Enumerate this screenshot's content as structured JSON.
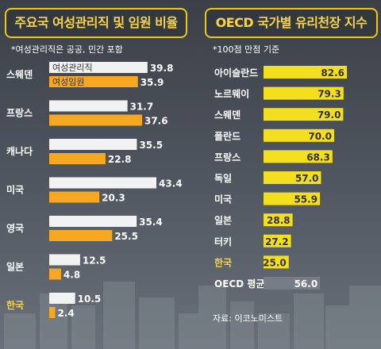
{
  "left": {
    "title": "주요국 여성관리직 및 임원 비율",
    "note": "*여성관리직은 공공, 민간 포함"
  },
  "right": {
    "title": "OECD 국가별 유리천장 지수",
    "note": "*100점 만점 기준",
    "source": "자료: 이코노미스트"
  },
  "colors": {
    "white_bar": "#f2f2f2",
    "orange_bar": "#f7a823",
    "yellow_bar": "#f3de20",
    "highlight_text": "#f5d34a",
    "text": "#ffffff"
  },
  "chart_data": [
    {
      "type": "bar",
      "orientation": "horizontal",
      "title": "주요국 여성관리직 및 임원 비율",
      "categories": [
        "스웨덴",
        "프랑스",
        "캐나다",
        "미국",
        "영국",
        "일본",
        "한국"
      ],
      "highlight_category": "한국",
      "series": [
        {
          "name": "여성관리직",
          "color": "#f2f2f2",
          "values": [
            39.8,
            31.7,
            35.5,
            43.4,
            35.4,
            12.5,
            10.5
          ]
        },
        {
          "name": "여성임원",
          "color": "#f7a823",
          "values": [
            35.9,
            37.6,
            22.8,
            20.3,
            25.5,
            4.8,
            2.4
          ]
        }
      ],
      "xlim": [
        0,
        45
      ]
    },
    {
      "type": "bar",
      "orientation": "horizontal",
      "title": "OECD 국가별 유리천장 지수",
      "categories": [
        "아이슬란드",
        "노르웨이",
        "스웨덴",
        "폴란드",
        "프랑스",
        "독일",
        "미국",
        "일본",
        "터키",
        "한국",
        "OECD 평균"
      ],
      "highlight_category": "한국",
      "values": [
        82.6,
        79.3,
        79.0,
        70.0,
        68.3,
        57.0,
        55.9,
        28.8,
        27.2,
        25.0,
        56.0
      ],
      "value_labels": [
        "82.6",
        "79.3",
        "79.0",
        "70.0",
        "68.3",
        "57.0",
        "55.9",
        "28.8",
        "27.2",
        "25.0",
        "56.0"
      ],
      "xlim": [
        0,
        100
      ]
    }
  ]
}
